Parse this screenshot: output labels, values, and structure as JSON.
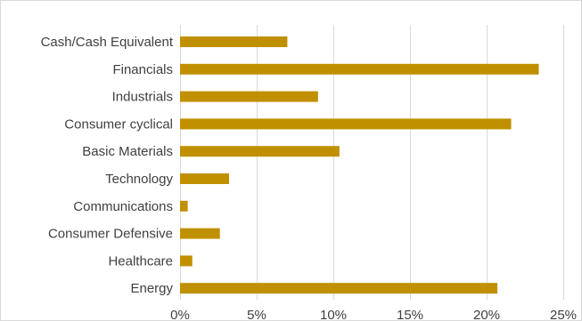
{
  "chart_data": {
    "type": "bar",
    "orientation": "horizontal",
    "categories": [
      "Cash/Cash Equivalent",
      "Financials",
      "Industrials",
      "Consumer cyclical",
      "Basic Materials",
      "Technology",
      "Communications",
      "Consumer Defensive",
      "Healthcare",
      "Energy"
    ],
    "values": [
      7.0,
      23.4,
      9.0,
      21.6,
      10.4,
      3.2,
      0.5,
      2.6,
      0.8,
      20.7
    ],
    "xlim": [
      0,
      25
    ],
    "xticks": [
      0,
      5,
      10,
      15,
      20,
      25
    ],
    "xtick_labels": [
      "0%",
      "5%",
      "10%",
      "15%",
      "20%",
      "25%"
    ],
    "title": "",
    "xlabel": "",
    "ylabel": "",
    "grid": "vertical",
    "legend": "none",
    "bar_color": "#c09000",
    "grid_color": "#d9d9d9"
  }
}
